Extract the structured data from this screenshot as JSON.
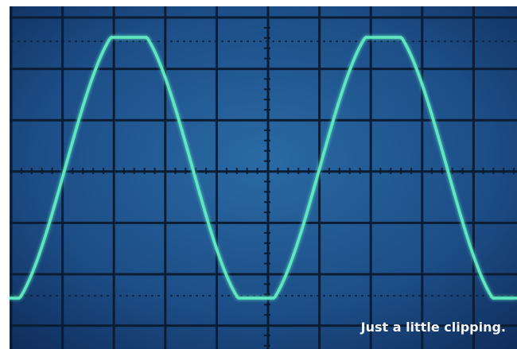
{
  "caption": "Just a little clipping."
}
